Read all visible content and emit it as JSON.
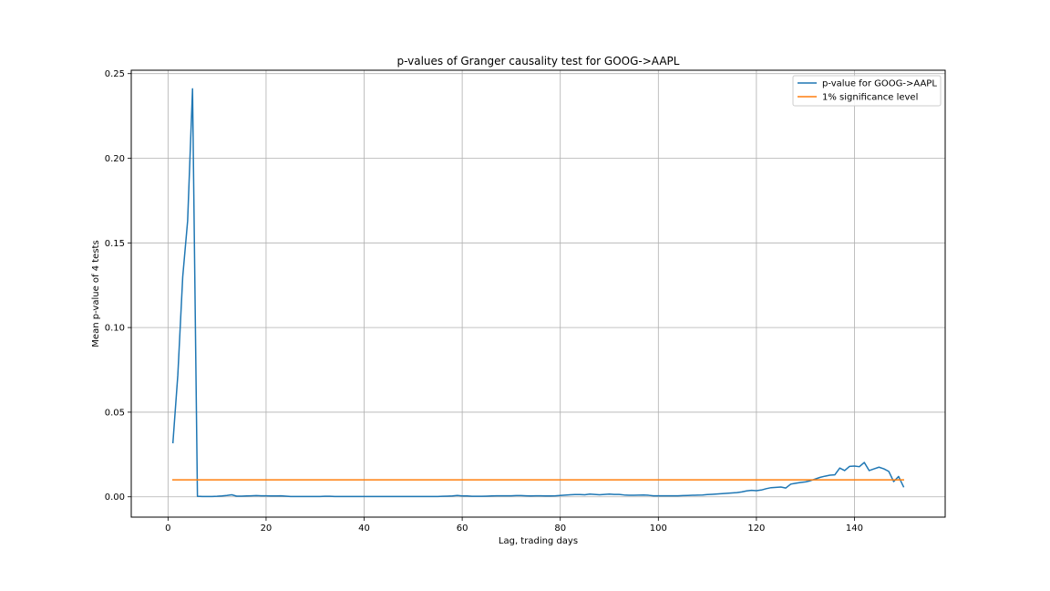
{
  "chart_data": {
    "type": "line",
    "title": "p-values of Granger causality test for GOOG->AAPL",
    "xlabel": "Lag, trading days",
    "ylabel": "Mean p-value of 4 tests",
    "xlim": [
      -7.5,
      158.5
    ],
    "ylim": [
      -0.012,
      0.252
    ],
    "xticks": [
      0,
      20,
      40,
      60,
      80,
      100,
      120,
      140
    ],
    "xtick_labels": [
      "0",
      "20",
      "40",
      "60",
      "80",
      "100",
      "120",
      "140"
    ],
    "yticks": [
      0.0,
      0.05,
      0.1,
      0.15,
      0.2,
      0.25
    ],
    "ytick_labels": [
      "0.00",
      "0.05",
      "0.10",
      "0.15",
      "0.20",
      "0.25"
    ],
    "grid": true,
    "legend_position": "top-right",
    "series": [
      {
        "name": "p-value for GOOG->AAPL",
        "color": "#1f77b4",
        "x": [
          1,
          2,
          3,
          4,
          5,
          6,
          7,
          8,
          9,
          10,
          11,
          12,
          13,
          14,
          15,
          16,
          17,
          18,
          19,
          20,
          21,
          22,
          23,
          24,
          25,
          26,
          27,
          28,
          29,
          30,
          31,
          32,
          33,
          34,
          35,
          36,
          37,
          38,
          39,
          40,
          41,
          42,
          43,
          44,
          45,
          46,
          47,
          48,
          49,
          50,
          51,
          52,
          53,
          54,
          55,
          56,
          57,
          58,
          59,
          60,
          61,
          62,
          63,
          64,
          65,
          66,
          67,
          68,
          69,
          70,
          71,
          72,
          73,
          74,
          75,
          76,
          77,
          78,
          79,
          80,
          81,
          82,
          83,
          84,
          85,
          86,
          87,
          88,
          89,
          90,
          91,
          92,
          93,
          94,
          95,
          96,
          97,
          98,
          99,
          100,
          101,
          102,
          103,
          104,
          105,
          106,
          107,
          108,
          109,
          110,
          111,
          112,
          113,
          114,
          115,
          116,
          117,
          118,
          119,
          120,
          121,
          122,
          123,
          124,
          125,
          126,
          127,
          128,
          129,
          130,
          131,
          132,
          133,
          134,
          135,
          136,
          137,
          138,
          139,
          140,
          141,
          142,
          143,
          144,
          145,
          146,
          147,
          148,
          149,
          150
        ],
        "y": [
          0.032,
          0.072,
          0.13,
          0.163,
          0.241,
          0.0003,
          0.0002,
          0.0002,
          0.0002,
          0.0003,
          0.0005,
          0.0008,
          0.0012,
          0.0004,
          0.0004,
          0.0005,
          0.0006,
          0.0007,
          0.0006,
          0.0006,
          0.0005,
          0.0005,
          0.0006,
          0.0004,
          0.0002,
          0.0002,
          0.0002,
          0.0002,
          0.0002,
          0.0002,
          0.0002,
          0.0003,
          0.0003,
          0.0002,
          0.0002,
          0.0002,
          0.0002,
          0.0002,
          0.0002,
          0.0002,
          0.0002,
          0.0002,
          0.0002,
          0.0002,
          0.0002,
          0.0002,
          0.0002,
          0.0002,
          0.0002,
          0.0002,
          0.0002,
          0.0002,
          0.0002,
          0.0002,
          0.0002,
          0.0003,
          0.0004,
          0.0005,
          0.0008,
          0.0005,
          0.0005,
          0.0003,
          0.0003,
          0.0003,
          0.0004,
          0.0005,
          0.0006,
          0.0006,
          0.0006,
          0.0006,
          0.0007,
          0.0007,
          0.0006,
          0.0005,
          0.0006,
          0.0006,
          0.0005,
          0.0005,
          0.0006,
          0.0008,
          0.001,
          0.0012,
          0.0013,
          0.0013,
          0.0012,
          0.0016,
          0.0014,
          0.0012,
          0.0014,
          0.0016,
          0.0014,
          0.0014,
          0.0011,
          0.0009,
          0.0009,
          0.001,
          0.0011,
          0.0009,
          0.0006,
          0.0006,
          0.0006,
          0.0006,
          0.0006,
          0.0006,
          0.0007,
          0.0008,
          0.0009,
          0.001,
          0.0011,
          0.0013,
          0.0015,
          0.0017,
          0.0019,
          0.0021,
          0.0023,
          0.0025,
          0.0029,
          0.0035,
          0.0038,
          0.0036,
          0.004,
          0.0048,
          0.0054,
          0.0056,
          0.0058,
          0.0052,
          0.0075,
          0.008,
          0.0085,
          0.0088,
          0.0095,
          0.0105,
          0.0115,
          0.0122,
          0.0128,
          0.013,
          0.017,
          0.0155,
          0.018,
          0.0182,
          0.0178,
          0.0203,
          0.0155,
          0.0165,
          0.0175,
          0.0165,
          0.015,
          0.009,
          0.012,
          0.006
        ]
      },
      {
        "name": "1% significance level",
        "color": "#ff7f0e",
        "x": [
          1,
          150
        ],
        "y": [
          0.01,
          0.01
        ]
      }
    ]
  }
}
